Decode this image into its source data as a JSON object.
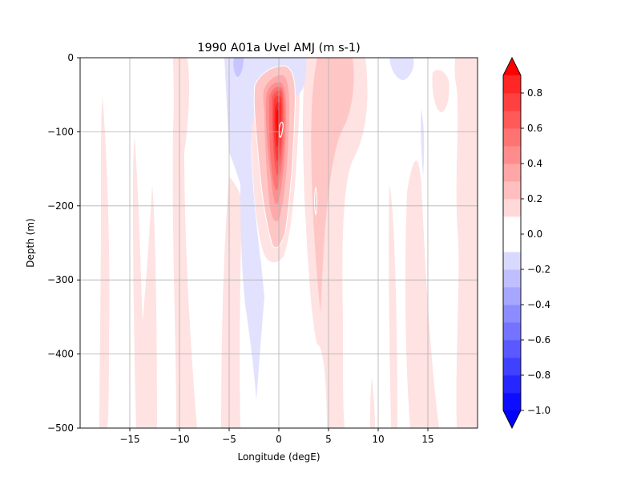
{
  "chart_data": {
    "type": "heatmap",
    "title": "1990 A01a  Uvel AMJ (m s-1)",
    "xlabel": "Longitude (degE)",
    "ylabel": "Depth (m)",
    "xlim": [
      -20,
      20
    ],
    "ylim": [
      -500,
      0
    ],
    "x_ticks": [
      -15,
      -10,
      -5,
      0,
      5,
      10,
      15
    ],
    "y_ticks": [
      0,
      -100,
      -200,
      -300,
      -400,
      -500
    ],
    "x_tick_labels": [
      "−15",
      "−10",
      "−5",
      "0",
      "5",
      "10",
      "15"
    ],
    "y_tick_labels": [
      "0",
      "−100",
      "−200",
      "−300",
      "−400",
      "−500"
    ],
    "grid": true,
    "colorbar": {
      "orientation": "vertical",
      "placement": "right",
      "min": -1.0,
      "max": 0.9,
      "step": 0.1,
      "extend": "both",
      "ticks": [
        0.8,
        0.6,
        0.4,
        0.2,
        0.0,
        -0.2,
        -0.4,
        -0.6,
        -0.8,
        -1.0
      ],
      "tick_labels": [
        "0.8",
        "0.6",
        "0.4",
        "0.2",
        "0.0",
        "−0.2",
        "−0.4",
        "−0.6",
        "−0.8",
        "−1.0"
      ],
      "colormap": "bwr",
      "extend_low_color": "#0000ff",
      "extend_high_color": "#ff0000"
    },
    "features": [
      {
        "kind": "equatorial-undercurrent-core",
        "lon": 0,
        "depth": -110,
        "max_value": 0.9
      },
      {
        "kind": "eastward-band",
        "lon_range": [
          2,
          6
        ],
        "depth_range": [
          0,
          -430
        ],
        "value": 0.15
      },
      {
        "kind": "westward-band",
        "lon_range": [
          -5,
          -1
        ],
        "depth_range": [
          0,
          -480
        ],
        "value": -0.1
      },
      {
        "kind": "westward-surface",
        "lon_range": [
          -4,
          3
        ],
        "depth_range": [
          0,
          -30
        ],
        "value": -0.15
      }
    ]
  }
}
